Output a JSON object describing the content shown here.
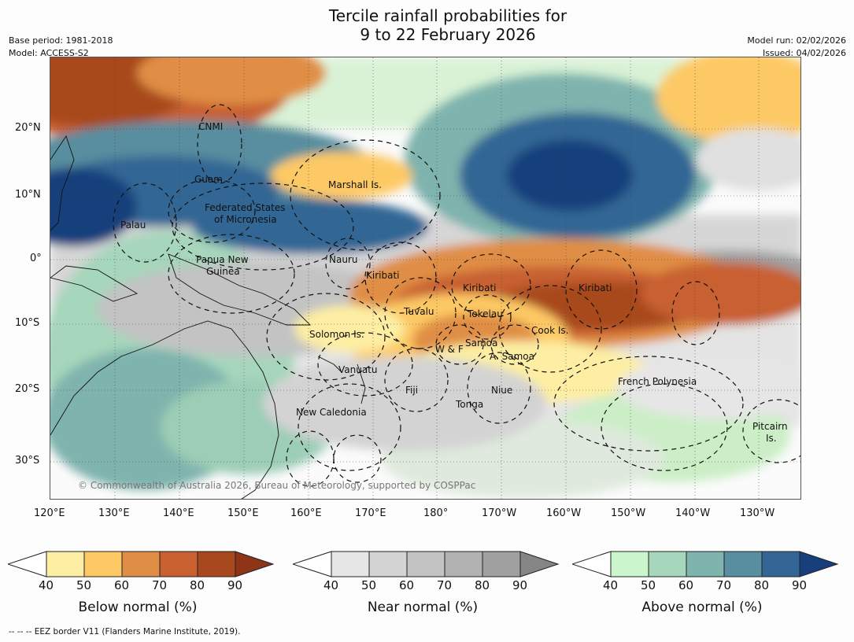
{
  "title": {
    "line1": "Tercile rainfall probabilities for",
    "line2": "9 to 22 February 2026"
  },
  "left_meta": {
    "base_period": "Base period: 1981-2018",
    "model": "Model: ACCESS-S2"
  },
  "right_meta": {
    "model_run": "Model run: 02/02/2026",
    "issued": "Issued: 04/02/2026"
  },
  "map": {
    "lat_labels": [
      "20°N",
      "10°N",
      "0°",
      "10°S",
      "20°S",
      "30°S"
    ],
    "lon_labels": [
      "120°E",
      "130°E",
      "140°E",
      "150°E",
      "160°E",
      "170°E",
      "180°",
      "170°W",
      "160°W",
      "150°W",
      "140°W",
      "130°W"
    ],
    "places": {
      "cnmi": "CNMI",
      "guam": "Guam",
      "marshall": "Marshall Is.",
      "fsm1": "Federated States",
      "fsm2": "of Micronesia",
      "palau": "Palau",
      "png1": "Papua New",
      "png2": "Guinea",
      "nauru": "Nauru",
      "kiribati_w": "Kiribati",
      "kiribati_c": "Kiribati",
      "kiribati_e": "Kiribati",
      "tuvalu": "Tuvalu",
      "tokelau": "Tokelau",
      "solomon": "Solomon Is.",
      "cook": "Cook Is.",
      "samoa": "Samoa",
      "wf": "W & F",
      "asamoa": "A. Samoa",
      "vanuatu": "Vanuatu",
      "fiji": "Fiji",
      "niue": "Niue",
      "tonga": "Tonga",
      "french_poly": "French Polynesia",
      "new_caledonia": "New Caledonia",
      "pitcairn1": "Pitcairn",
      "pitcairn2": "Is."
    },
    "credit": "© Commonwealth of Australia 2026, Bureau of Meteorology, supported by COSPPac",
    "colors": {
      "ocean_white": "#ffffff",
      "dryland_gray": "#e0e0e0"
    }
  },
  "colorbars": [
    {
      "title": "Below normal (%)",
      "ticks": [
        "40",
        "50",
        "60",
        "70",
        "80",
        "90"
      ],
      "colors": [
        "#fdeea3",
        "#fdc965",
        "#e08e45",
        "#c86030",
        "#a8481f",
        "#8e3418"
      ]
    },
    {
      "title": "Near normal (%)",
      "ticks": [
        "40",
        "50",
        "60",
        "70",
        "80",
        "90"
      ],
      "colors": [
        "#e6e6e6",
        "#d3d3d3",
        "#c3c3c3",
        "#b1b1b1",
        "#a0a0a0",
        "#858585"
      ]
    },
    {
      "title": "Above normal (%)",
      "ticks": [
        "40",
        "50",
        "60",
        "70",
        "80",
        "90"
      ],
      "colors": [
        "#ccf6cb",
        "#a6d6bb",
        "#7fb3ad",
        "#588e9f",
        "#336694",
        "#173f7c"
      ]
    }
  ],
  "footer": "--  --  -- EEZ border V11 (Flanders Marine Institute, 2019)."
}
